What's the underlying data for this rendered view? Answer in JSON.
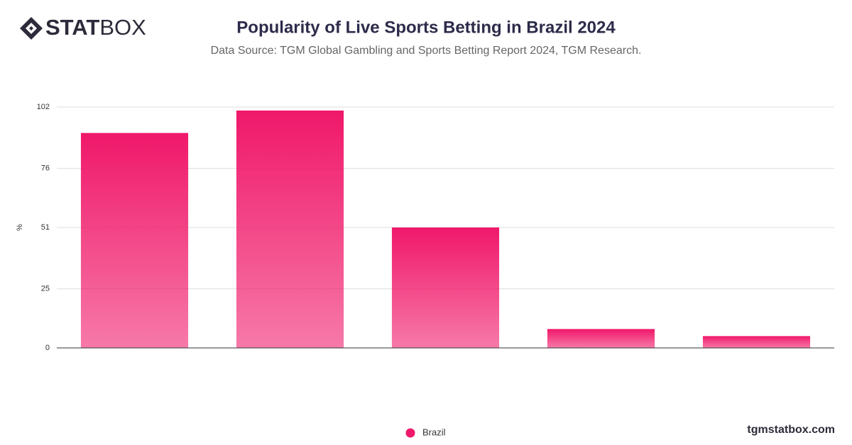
{
  "logo": {
    "bold": "STAT",
    "light": "BOX"
  },
  "footer": "tgmstatbox.com",
  "chart_data": {
    "type": "bar",
    "title": "Popularity of Live Sports Betting in Brazil 2024",
    "subtitle": "Data Source: TGM Global Gambling and Sports Betting Report 2024, TGM Research.",
    "y_label": "%",
    "categories": [
      null,
      null,
      null,
      null,
      null
    ],
    "series": [
      {
        "name": "Brazil",
        "color": "#f0186a",
        "values": [
          91,
          100.5,
          51,
          8,
          5
        ]
      }
    ],
    "ylim": [
      0,
      102
    ],
    "yticks": [
      0,
      25,
      51,
      76,
      102
    ],
    "grid": true
  }
}
